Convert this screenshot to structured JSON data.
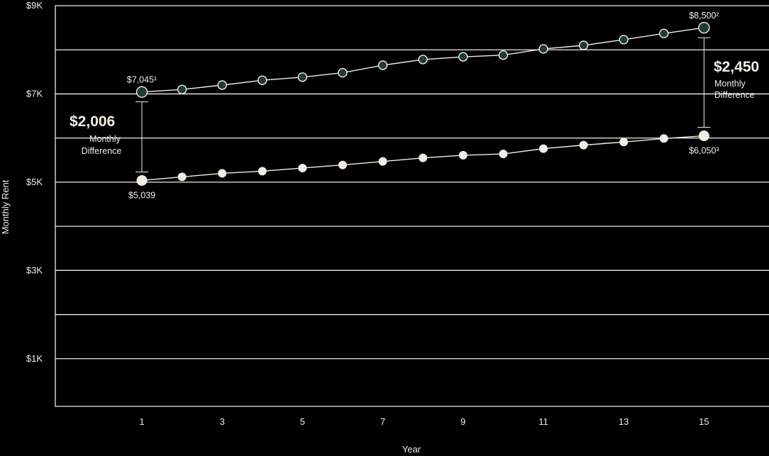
{
  "chart_data": {
    "type": "line",
    "title": "",
    "xlabel": "Year",
    "ylabel": "Monthly Rent",
    "y_ticks": [
      {
        "value": 9000,
        "label": "$9K"
      },
      {
        "value": 7000,
        "label": "$7K"
      },
      {
        "value": 5000,
        "label": "$5K"
      },
      {
        "value": 3000,
        "label": "$3K"
      },
      {
        "value": 1000,
        "label": "$1K"
      }
    ],
    "gridlines": [
      9000,
      8000,
      7000,
      6000,
      5000,
      4000,
      3000,
      2000,
      1000
    ],
    "ylim": [
      0,
      9000
    ],
    "x_ticks": [
      {
        "value": 1,
        "label": "1"
      },
      {
        "value": 3,
        "label": "3"
      },
      {
        "value": 5,
        "label": "5"
      },
      {
        "value": 7,
        "label": "7"
      },
      {
        "value": 9,
        "label": "9"
      },
      {
        "value": 11,
        "label": "11"
      },
      {
        "value": 13,
        "label": "13"
      },
      {
        "value": 15,
        "label": "15"
      }
    ],
    "x": [
      1,
      2,
      3,
      4,
      5,
      6,
      7,
      8,
      9,
      10,
      11,
      12,
      13,
      14,
      15
    ],
    "series": [
      {
        "name": "",
        "color": "#1f3b33",
        "values": [
          7045,
          7100,
          7200,
          7310,
          7380,
          7480,
          7650,
          7780,
          7840,
          7880,
          8020,
          8100,
          8230,
          8370,
          8500
        ]
      },
      {
        "name": "",
        "color": "#f1ede4",
        "values": [
          5039,
          5120,
          5200,
          5250,
          5320,
          5390,
          5470,
          5550,
          5610,
          5640,
          5760,
          5840,
          5910,
          5990,
          6050
        ]
      }
    ],
    "point_labels": [
      {
        "series": 0,
        "index": 0,
        "text": "$7,045¹"
      },
      {
        "series": 0,
        "index": 14,
        "text": "$8,500²"
      },
      {
        "series": 1,
        "index": 0,
        "text": "$5,039"
      },
      {
        "series": 1,
        "index": 14,
        "text": "$6,050³"
      }
    ],
    "differences": [
      {
        "index": 0,
        "amount": "$2,006",
        "line1": "Monthly",
        "line2": "Difference"
      },
      {
        "index": 14,
        "amount": "$2,450",
        "line1": "Monthly",
        "line2": "Difference"
      }
    ]
  }
}
